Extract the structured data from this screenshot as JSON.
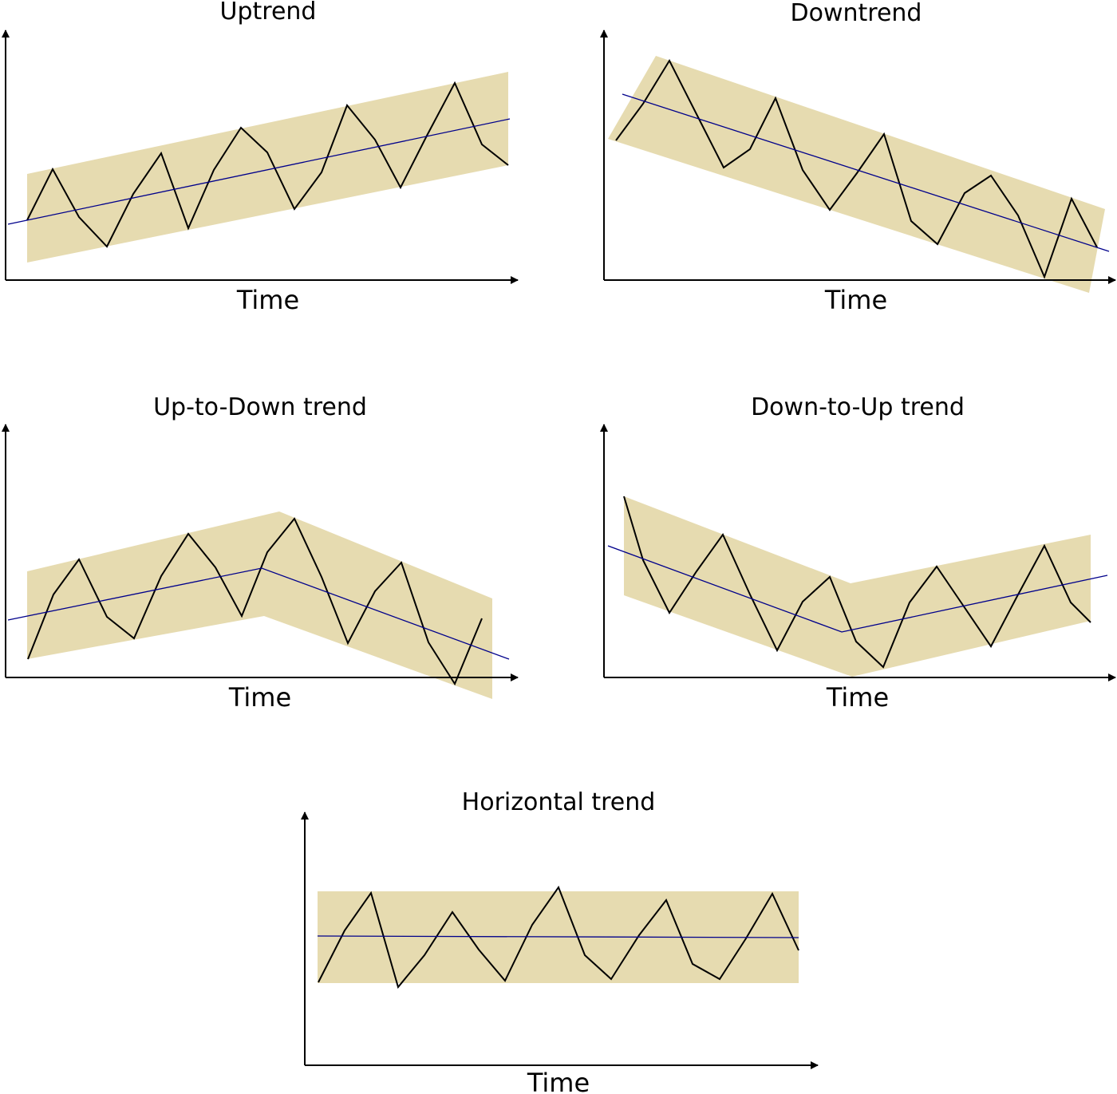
{
  "colors": {
    "band": "#e6dbb0",
    "price": "#000000",
    "trendline": "#00008b",
    "axis": "#000000"
  },
  "panels": [
    {
      "id": "uptrend",
      "title": "Uptrend",
      "xlabel": "Time"
    },
    {
      "id": "downtrend",
      "title": "Downtrend",
      "xlabel": "Time"
    },
    {
      "id": "up-to-down",
      "title": "Up-to-Down trend",
      "xlabel": "Time"
    },
    {
      "id": "down-to-up",
      "title": "Down-to-Up trend",
      "xlabel": "Time"
    },
    {
      "id": "horizontal",
      "title": "Horizontal trend",
      "xlabel": "Time"
    }
  ]
}
